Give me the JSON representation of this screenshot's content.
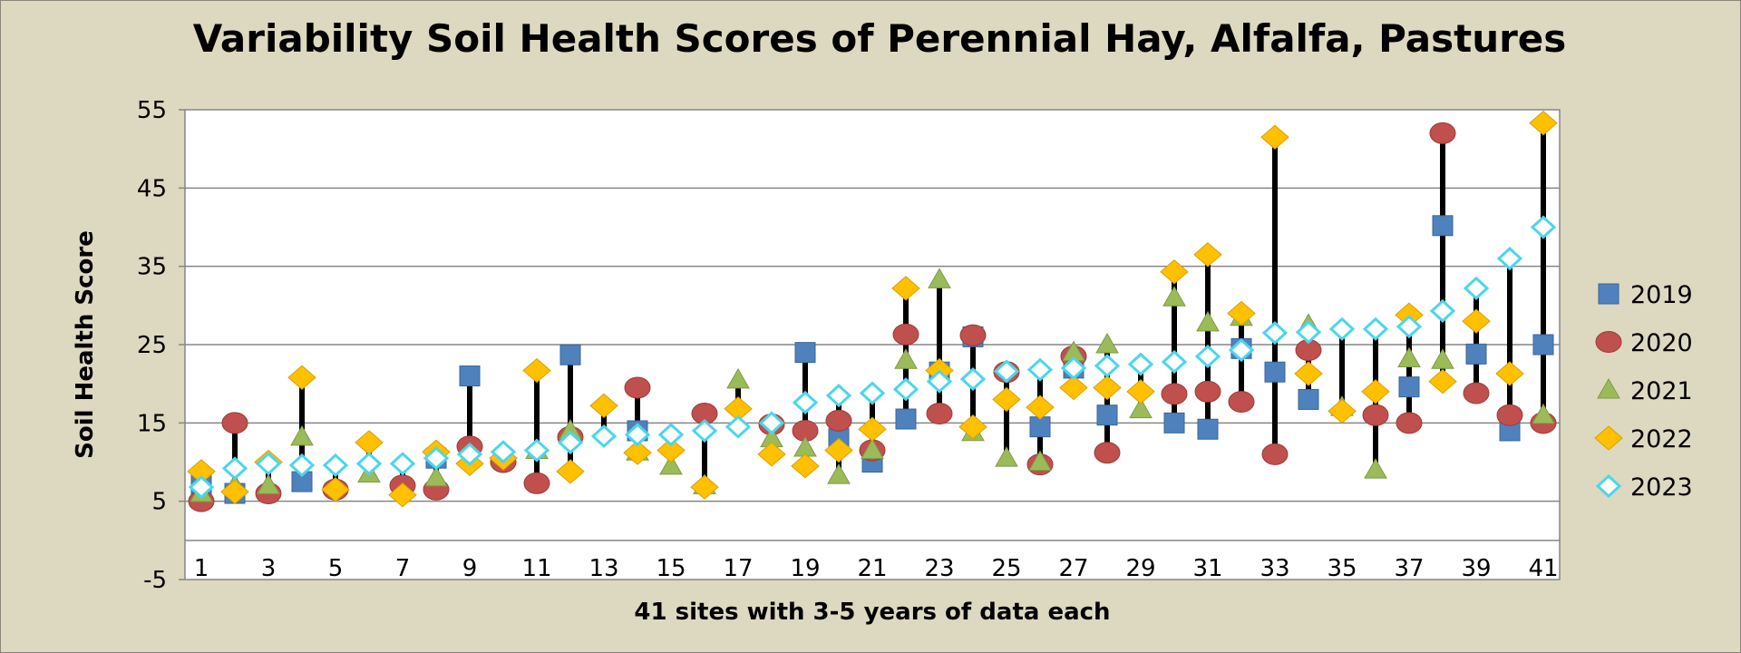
{
  "chart_data": {
    "type": "scatter",
    "title": "Variability Soil Health Scores of Perennial Hay, Alfalfa, Pastures",
    "xlabel": "41 sites with 3-5 years of data each",
    "ylabel": "Soil Health Score",
    "xlim": [
      1,
      41
    ],
    "ylim": [
      -5,
      55
    ],
    "yticks": [
      -5,
      5,
      15,
      25,
      35,
      45,
      55
    ],
    "xticks": [
      1,
      3,
      5,
      7,
      9,
      11,
      13,
      15,
      17,
      19,
      21,
      23,
      25,
      27,
      29,
      31,
      33,
      35,
      37,
      39,
      41
    ],
    "grid": true,
    "legend_position": "right",
    "high_low_lines": true,
    "series": [
      {
        "name": "2019",
        "color": "#4f81bd",
        "marker": "square",
        "points": [
          [
            1,
            7
          ],
          [
            2,
            6
          ],
          [
            4,
            7.5
          ],
          [
            8,
            10.5
          ],
          [
            9,
            21
          ],
          [
            12,
            23.7
          ],
          [
            14,
            14
          ],
          [
            19,
            24
          ],
          [
            20,
            13
          ],
          [
            21,
            10
          ],
          [
            22,
            15.5
          ],
          [
            23,
            21.5
          ],
          [
            24,
            26
          ],
          [
            26,
            14.5
          ],
          [
            27,
            22
          ],
          [
            28,
            16
          ],
          [
            30,
            15
          ],
          [
            31,
            14.2
          ],
          [
            32,
            24.5
          ],
          [
            33,
            21.5
          ],
          [
            34,
            18
          ],
          [
            37,
            19.6
          ],
          [
            38,
            40.2
          ],
          [
            39,
            23.8
          ],
          [
            40,
            14
          ],
          [
            41,
            25
          ]
        ]
      },
      {
        "name": "2020",
        "color": "#c0504d",
        "marker": "circle",
        "points": [
          [
            1,
            5
          ],
          [
            2,
            15
          ],
          [
            3,
            6
          ],
          [
            5,
            6.5
          ],
          [
            7,
            7
          ],
          [
            8,
            6.5
          ],
          [
            9,
            12
          ],
          [
            10,
            10
          ],
          [
            11,
            7.3
          ],
          [
            12,
            13.2
          ],
          [
            14,
            19.5
          ],
          [
            16,
            16.2
          ],
          [
            18,
            14.8
          ],
          [
            19,
            14
          ],
          [
            20,
            15.3
          ],
          [
            21,
            11.5
          ],
          [
            22,
            26.3
          ],
          [
            23,
            16.2
          ],
          [
            24,
            26.2
          ],
          [
            25,
            21.5
          ],
          [
            26,
            9.7
          ],
          [
            27,
            23.5
          ],
          [
            28,
            11.2
          ],
          [
            30,
            18.7
          ],
          [
            31,
            19
          ],
          [
            32,
            17.7
          ],
          [
            33,
            11
          ],
          [
            34,
            24.3
          ],
          [
            36,
            16
          ],
          [
            37,
            15
          ],
          [
            38,
            52
          ],
          [
            39,
            18.8
          ],
          [
            40,
            16
          ],
          [
            41,
            15
          ]
        ]
      },
      {
        "name": "2021",
        "color": "#9bbb59",
        "marker": "triangle",
        "points": [
          [
            1,
            6
          ],
          [
            2,
            7
          ],
          [
            3,
            7
          ],
          [
            4,
            13.2
          ],
          [
            6,
            8.5
          ],
          [
            8,
            8
          ],
          [
            11,
            11.5
          ],
          [
            12,
            14
          ],
          [
            14,
            11.3
          ],
          [
            15,
            9.5
          ],
          [
            16,
            7
          ],
          [
            17,
            20.5
          ],
          [
            18,
            13
          ],
          [
            19,
            11.8
          ],
          [
            20,
            8.3
          ],
          [
            21,
            11.5
          ],
          [
            22,
            23
          ],
          [
            23,
            33.3
          ],
          [
            24,
            13.8
          ],
          [
            25,
            10.5
          ],
          [
            26,
            10
          ],
          [
            27,
            24
          ],
          [
            28,
            25
          ],
          [
            29,
            16.7
          ],
          [
            30,
            31
          ],
          [
            31,
            27.8
          ],
          [
            32,
            28.5
          ],
          [
            34,
            27.5
          ],
          [
            35,
            17
          ],
          [
            36,
            9
          ],
          [
            37,
            23.2
          ],
          [
            38,
            23
          ],
          [
            41,
            16
          ]
        ]
      },
      {
        "name": "2022",
        "color": "#ffc000",
        "marker": "diamond",
        "points": [
          [
            1,
            8.8
          ],
          [
            2,
            6.2
          ],
          [
            3,
            10
          ],
          [
            4,
            20.8
          ],
          [
            5,
            6.5
          ],
          [
            6,
            12.5
          ],
          [
            7,
            5.8
          ],
          [
            8,
            11.3
          ],
          [
            9,
            9.8
          ],
          [
            10,
            10.5
          ],
          [
            11,
            21.7
          ],
          [
            12,
            8.8
          ],
          [
            13,
            17.2
          ],
          [
            14,
            11.2
          ],
          [
            15,
            11.5
          ],
          [
            16,
            6.8
          ],
          [
            17,
            16.8
          ],
          [
            18,
            11
          ],
          [
            19,
            9.5
          ],
          [
            20,
            11.5
          ],
          [
            21,
            14.2
          ],
          [
            22,
            32.2
          ],
          [
            23,
            21.7
          ],
          [
            24,
            14.5
          ],
          [
            25,
            18
          ],
          [
            26,
            17
          ],
          [
            27,
            19.5
          ],
          [
            28,
            19.5
          ],
          [
            29,
            19
          ],
          [
            30,
            34.3
          ],
          [
            31,
            36.5
          ],
          [
            32,
            29
          ],
          [
            33,
            51.5
          ],
          [
            34,
            21.3
          ],
          [
            35,
            16.5
          ],
          [
            36,
            19
          ],
          [
            37,
            28.8
          ],
          [
            38,
            20.3
          ],
          [
            39,
            28
          ],
          [
            40,
            21.3
          ],
          [
            41,
            53.3
          ]
        ]
      },
      {
        "name": "2023",
        "color": "#4bd6ec",
        "marker": "diamond-open",
        "points": [
          [
            1,
            6.8
          ],
          [
            2,
            9.2
          ],
          [
            3,
            9.8
          ],
          [
            4,
            9.6
          ],
          [
            5,
            9.6
          ],
          [
            6,
            9.8
          ],
          [
            7,
            9.8
          ],
          [
            8,
            10.5
          ],
          [
            9,
            11
          ],
          [
            10,
            11.3
          ],
          [
            11,
            11.5
          ],
          [
            12,
            12.5
          ],
          [
            13,
            13.3
          ],
          [
            14,
            13.5
          ],
          [
            15,
            13.5
          ],
          [
            16,
            14
          ],
          [
            17,
            14.5
          ],
          [
            18,
            15
          ],
          [
            19,
            17.6
          ],
          [
            20,
            18.5
          ],
          [
            21,
            18.8
          ],
          [
            22,
            19.3
          ],
          [
            23,
            20.3
          ],
          [
            24,
            20.6
          ],
          [
            25,
            21.6
          ],
          [
            26,
            21.8
          ],
          [
            27,
            22
          ],
          [
            28,
            22.3
          ],
          [
            29,
            22.5
          ],
          [
            30,
            22.8
          ],
          [
            31,
            23.5
          ],
          [
            32,
            24.3
          ],
          [
            33,
            26.5
          ],
          [
            34,
            26.6
          ],
          [
            35,
            27
          ],
          [
            36,
            27
          ],
          [
            37,
            27.3
          ],
          [
            38,
            29.3
          ],
          [
            39,
            32.2
          ],
          [
            40,
            36
          ],
          [
            41,
            40
          ]
        ]
      }
    ]
  }
}
